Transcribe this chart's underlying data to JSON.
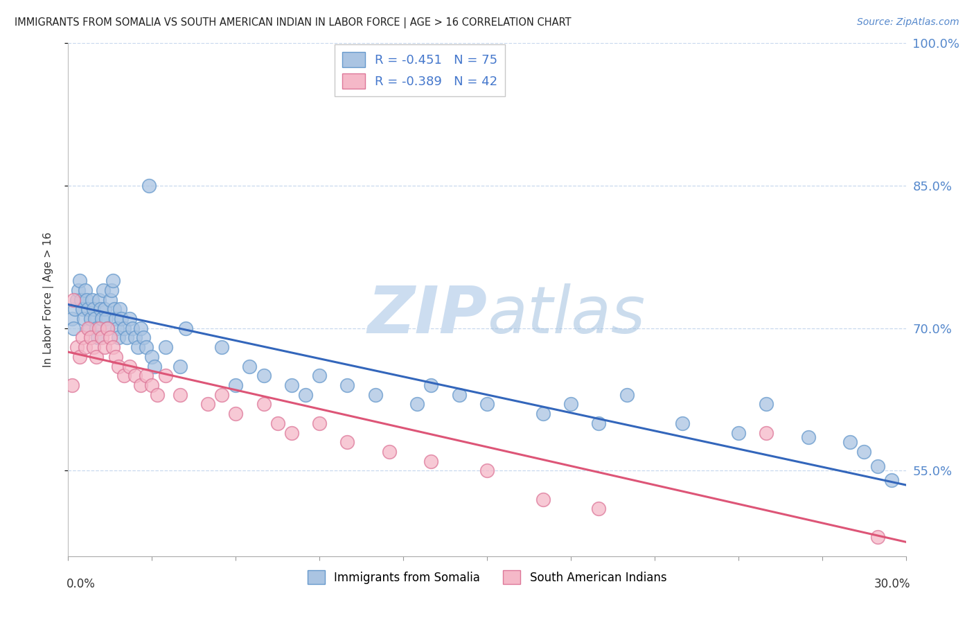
{
  "title": "IMMIGRANTS FROM SOMALIA VS SOUTH AMERICAN INDIAN IN LABOR FORCE | AGE > 16 CORRELATION CHART",
  "source": "Source: ZipAtlas.com",
  "ylabel": "In Labor Force | Age > 16",
  "yticks_right": [
    55.0,
    70.0,
    85.0,
    100.0
  ],
  "xmin": 0.0,
  "xmax": 30.0,
  "ymin": 46.0,
  "ymax": 100.0,
  "blue_R": -0.451,
  "blue_N": 75,
  "pink_R": -0.389,
  "pink_N": 42,
  "blue_color": "#aac4e2",
  "blue_edge": "#6699cc",
  "pink_color": "#f5b8c8",
  "pink_edge": "#dd7799",
  "blue_line_color": "#3366bb",
  "pink_line_color": "#dd5577",
  "background_color": "#ffffff",
  "grid_color": "#c8d8ee",
  "blue_line_y0": 72.5,
  "blue_line_y1": 53.5,
  "pink_line_y0": 67.5,
  "pink_line_y1": 47.5,
  "blue_scatter_x": [
    0.15,
    0.2,
    0.25,
    0.3,
    0.35,
    0.4,
    0.45,
    0.5,
    0.55,
    0.6,
    0.65,
    0.7,
    0.75,
    0.8,
    0.85,
    0.9,
    0.95,
    1.0,
    1.05,
    1.1,
    1.15,
    1.2,
    1.25,
    1.3,
    1.35,
    1.4,
    1.5,
    1.55,
    1.6,
    1.65,
    1.7,
    1.75,
    1.8,
    1.85,
    1.9,
    2.0,
    2.1,
    2.2,
    2.3,
    2.4,
    2.5,
    2.6,
    2.7,
    2.8,
    2.9,
    3.0,
    3.1,
    3.5,
    4.0,
    4.2,
    5.5,
    6.0,
    6.5,
    7.0,
    8.0,
    8.5,
    9.0,
    10.0,
    11.0,
    12.5,
    13.0,
    14.0,
    15.0,
    17.0,
    18.0,
    19.0,
    20.0,
    22.0,
    24.0,
    25.0,
    26.5,
    28.0,
    28.5,
    29.0,
    29.5
  ],
  "blue_scatter_y": [
    71.0,
    70.0,
    72.0,
    73.0,
    74.0,
    75.0,
    73.0,
    72.0,
    71.0,
    74.0,
    73.0,
    72.0,
    70.0,
    71.0,
    73.0,
    72.0,
    71.0,
    70.0,
    69.0,
    73.0,
    72.0,
    71.0,
    74.0,
    72.0,
    71.0,
    70.0,
    73.0,
    74.0,
    75.0,
    72.0,
    71.0,
    70.0,
    69.0,
    72.0,
    71.0,
    70.0,
    69.0,
    71.0,
    70.0,
    69.0,
    68.0,
    70.0,
    69.0,
    68.0,
    85.0,
    67.0,
    66.0,
    68.0,
    66.0,
    70.0,
    68.0,
    64.0,
    66.0,
    65.0,
    64.0,
    63.0,
    65.0,
    64.0,
    63.0,
    62.0,
    64.0,
    63.0,
    62.0,
    61.0,
    62.0,
    60.0,
    63.0,
    60.0,
    59.0,
    62.0,
    58.5,
    58.0,
    57.0,
    55.5,
    54.0
  ],
  "pink_scatter_x": [
    0.15,
    0.2,
    0.3,
    0.4,
    0.5,
    0.6,
    0.7,
    0.8,
    0.9,
    1.0,
    1.1,
    1.2,
    1.3,
    1.4,
    1.5,
    1.6,
    1.7,
    1.8,
    2.0,
    2.2,
    2.4,
    2.6,
    2.8,
    3.0,
    3.2,
    3.5,
    4.0,
    5.0,
    5.5,
    6.0,
    7.0,
    7.5,
    8.0,
    9.0,
    10.0,
    11.5,
    13.0,
    15.0,
    17.0,
    19.0,
    25.0,
    29.0
  ],
  "pink_scatter_y": [
    64.0,
    73.0,
    68.0,
    67.0,
    69.0,
    68.0,
    70.0,
    69.0,
    68.0,
    67.0,
    70.0,
    69.0,
    68.0,
    70.0,
    69.0,
    68.0,
    67.0,
    66.0,
    65.0,
    66.0,
    65.0,
    64.0,
    65.0,
    64.0,
    63.0,
    65.0,
    63.0,
    62.0,
    63.0,
    61.0,
    62.0,
    60.0,
    59.0,
    60.0,
    58.0,
    57.0,
    56.0,
    55.0,
    52.0,
    51.0,
    59.0,
    48.0
  ]
}
